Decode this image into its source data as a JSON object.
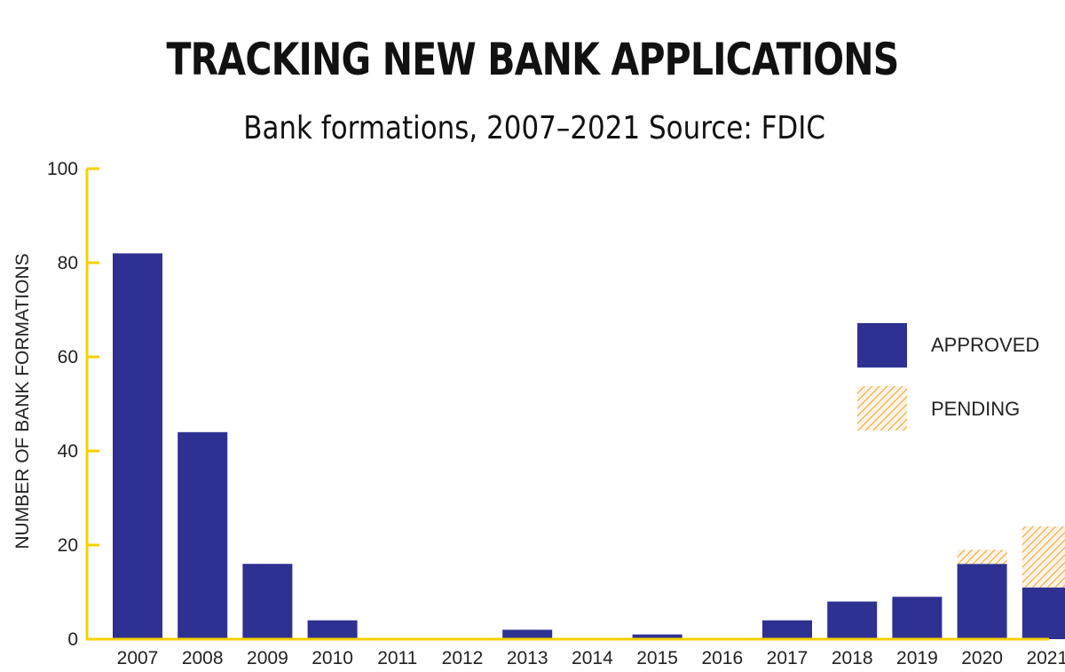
{
  "title": "TRACKING NEW BANK APPLICATIONS",
  "subtitle": "Bank formations, 2007–2021 Source: FDIC",
  "colors": {
    "approved": "#2e3192",
    "pending": "#e8a33d",
    "axis": "#f5d000"
  },
  "chart_data": {
    "type": "bar",
    "stacked": true,
    "title": "TRACKING NEW BANK APPLICATIONS",
    "subtitle": "Bank formations, 2007–2021 Source: FDIC",
    "xlabel": "",
    "ylabel": "NUMBER OF BANK FORMATIONS",
    "ylim": [
      0,
      100
    ],
    "yticks": [
      0,
      20,
      40,
      60,
      80,
      100
    ],
    "grid": false,
    "legend_position": "right",
    "categories": [
      "2007",
      "2008",
      "2009",
      "2010",
      "2011",
      "2012",
      "2013",
      "2014",
      "2015",
      "2016",
      "2017",
      "2018",
      "2019",
      "2020",
      "2021"
    ],
    "series": [
      {
        "name": "APPROVED",
        "values": [
          82,
          44,
          16,
          4,
          0,
          0,
          2,
          0,
          1,
          0,
          4,
          8,
          9,
          16,
          11
        ]
      },
      {
        "name": "PENDING",
        "values": [
          0,
          0,
          0,
          0,
          0,
          0,
          0,
          0,
          0,
          0,
          0,
          0,
          0,
          3,
          13
        ]
      }
    ]
  }
}
